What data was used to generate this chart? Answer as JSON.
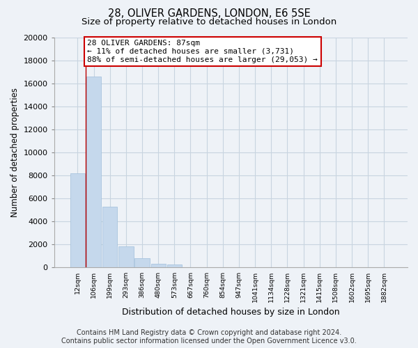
{
  "title": "28, OLIVER GARDENS, LONDON, E6 5SE",
  "subtitle": "Size of property relative to detached houses in London",
  "xlabel": "Distribution of detached houses by size in London",
  "ylabel": "Number of detached properties",
  "bar_values": [
    8200,
    16600,
    5300,
    1850,
    800,
    300,
    250,
    0,
    0,
    0,
    0,
    0,
    0,
    0,
    0,
    0,
    0,
    0,
    0,
    0
  ],
  "bar_labels": [
    "12sqm",
    "106sqm",
    "199sqm",
    "293sqm",
    "386sqm",
    "480sqm",
    "573sqm",
    "667sqm",
    "760sqm",
    "854sqm",
    "947sqm",
    "1041sqm",
    "1134sqm",
    "1228sqm",
    "1321sqm",
    "1415sqm",
    "1508sqm",
    "1602sqm",
    "1695sqm",
    "1882sqm"
  ],
  "bar_color": "#c5d8ec",
  "bar_edge_color": "#a8c4de",
  "annotation_box_color": "#ffffff",
  "annotation_border_color": "#cc0000",
  "annotation_line1": "28 OLIVER GARDENS: 87sqm",
  "annotation_line2": "← 11% of detached houses are smaller (3,731)",
  "annotation_line3": "88% of semi-detached houses are larger (29,053) →",
  "property_line_x": 0.5,
  "ylim": [
    0,
    20000
  ],
  "yticks": [
    0,
    2000,
    4000,
    6000,
    8000,
    10000,
    12000,
    14000,
    16000,
    18000,
    20000
  ],
  "footer_line1": "Contains HM Land Registry data © Crown copyright and database right 2024.",
  "footer_line2": "Contains public sector information licensed under the Open Government Licence v3.0.",
  "background_color": "#eef2f7",
  "plot_background_color": "#eef2f7",
  "grid_color": "#c8d4e0",
  "title_fontsize": 10.5,
  "subtitle_fontsize": 9.5,
  "xlabel_fontsize": 9,
  "ylabel_fontsize": 8.5,
  "footer_fontsize": 7.0
}
